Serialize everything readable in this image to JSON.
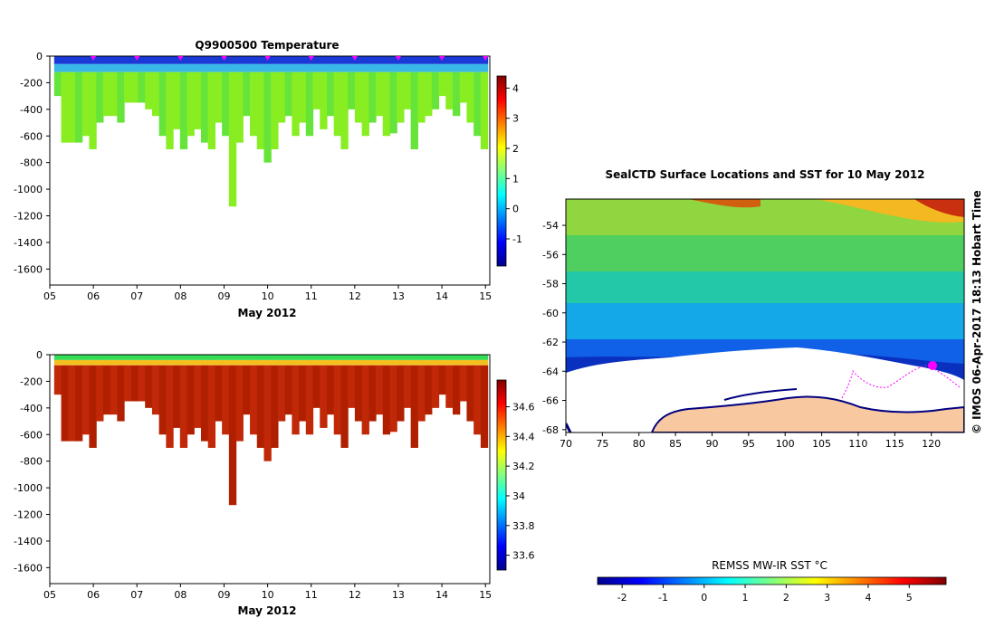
{
  "chart_data": [
    {
      "type": "heatmap",
      "title": "Q9900500  Temperature",
      "xlabel": "May 2012",
      "ylabel": "",
      "x_ticks": [
        "05",
        "06",
        "07",
        "08",
        "09",
        "10",
        "11",
        "12",
        "13",
        "14",
        "15"
      ],
      "y_ticks": [
        "0",
        "-200",
        "-400",
        "-600",
        "-800",
        "-1000",
        "-1200",
        "-1400",
        "-1600"
      ],
      "ylim": [
        -1720,
        0
      ],
      "xlim": [
        5,
        15.1
      ],
      "colorbar": {
        "ticks": [
          "-1",
          "0",
          "1",
          "2",
          "3",
          "4"
        ],
        "range": [
          -1.9,
          4.4
        ]
      },
      "profile_depths": [
        -300,
        -650,
        -650,
        -650,
        -600,
        -700,
        -500,
        -450,
        -450,
        -500,
        -350,
        -350,
        -350,
        -400,
        -450,
        -600,
        -700,
        -550,
        -700,
        -600,
        -550,
        -650,
        -700,
        -500,
        -600,
        -1130,
        -650,
        -450,
        -600,
        -700,
        -800,
        -700,
        -500,
        -450,
        -600,
        -500,
        -600,
        -400,
        -550,
        -450,
        -600,
        -700,
        -400,
        -500,
        -600,
        -500,
        -450,
        -600,
        -580,
        -500,
        -400,
        -700,
        -500,
        -450,
        -400,
        -300,
        -400,
        -450,
        -350,
        -500,
        -600,
        -700
      ],
      "surface_markers_x": [
        6,
        7,
        8,
        9,
        10,
        11,
        12,
        13,
        14,
        15
      ]
    },
    {
      "type": "heatmap",
      "title": "",
      "xlabel": "May 2012",
      "ylabel": "",
      "x_ticks": [
        "05",
        "06",
        "07",
        "08",
        "09",
        "10",
        "11",
        "12",
        "13",
        "14",
        "15"
      ],
      "y_ticks": [
        "0",
        "-200",
        "-400",
        "-600",
        "-800",
        "-1000",
        "-1200",
        "-1400",
        "-1600"
      ],
      "ylim": [
        -1720,
        0
      ],
      "xlim": [
        5,
        15.1
      ],
      "colorbar": {
        "ticks": [
          "33.6",
          "33.8",
          "34",
          "34.2",
          "34.4",
          "34.6"
        ],
        "range": [
          33.5,
          34.78
        ]
      }
    },
    {
      "type": "heatmap",
      "title": "SealCTD Surface Locations and SST for 10 May 2012",
      "x_ticks": [
        "70",
        "75",
        "80",
        "85",
        "90",
        "95",
        "100",
        "105",
        "110",
        "115",
        "120"
      ],
      "y_ticks": [
        "-54",
        "-56",
        "-58",
        "-60",
        "-62",
        "-64",
        "-66",
        "-68"
      ],
      "xlim": [
        70,
        124.5
      ],
      "ylim": [
        -68.2,
        -52.2
      ],
      "colorbar_label": "REMSS MW-IR SST °C",
      "colorbar": {
        "ticks": [
          "-2",
          "-1",
          "0",
          "1",
          "2",
          "3",
          "4",
          "5"
        ],
        "range": [
          -2.6,
          5.9
        ]
      },
      "side_text": "© IMOS 06-Apr-2017 18:13 Hobart Time"
    }
  ],
  "colors": {
    "jet": [
      "#00008f",
      "#0000ff",
      "#00ffff",
      "#ffff00",
      "#ff0000",
      "#800000"
    ],
    "land": "#f8c8a0",
    "track": "#ff00ff",
    "coast": "#000080"
  }
}
